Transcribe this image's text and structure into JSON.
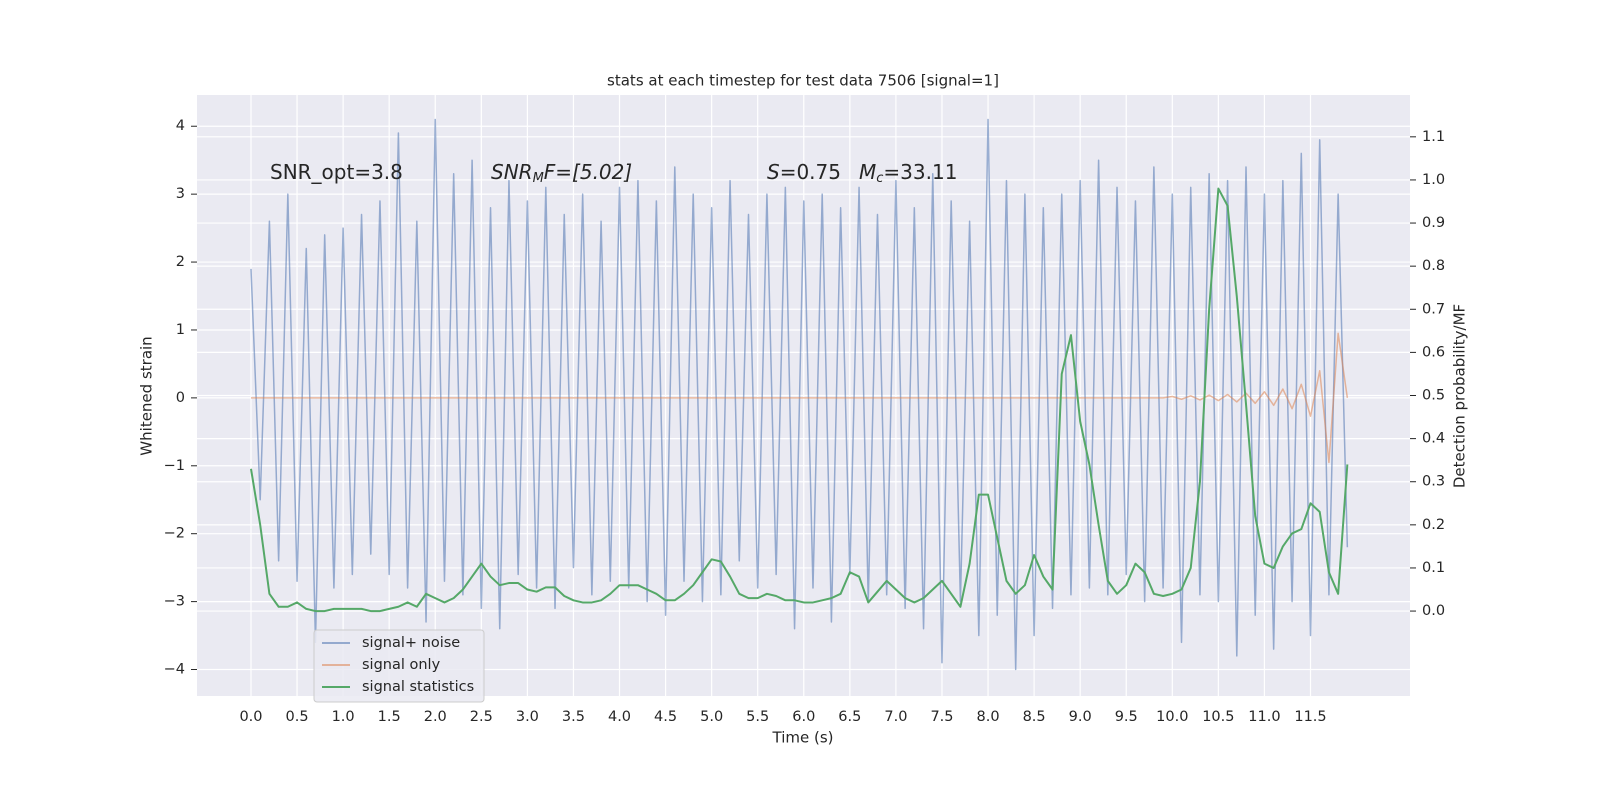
{
  "chart_data": {
    "type": "line",
    "title": "stats at each timestep for test data 7506 [signal=1]",
    "xlabel": "Time (s)",
    "ylabel": "Whitened strain",
    "y2label": "Detection probability/MF",
    "annotations": [
      {
        "parts": [
          "SNR_opt=3.8"
        ]
      },
      {
        "parts": [
          "SNR",
          "M",
          "F=[5.02]"
        ]
      },
      {
        "parts": [
          "S",
          "=0.75",
          "M",
          "c",
          "=33.11"
        ]
      }
    ],
    "x": [
      0,
      0.1,
      0.2,
      0.3,
      0.4,
      0.5,
      0.6,
      0.7,
      0.8,
      0.9,
      1,
      1.1,
      1.2,
      1.3,
      1.4,
      1.5,
      1.6,
      1.7,
      1.8,
      1.9,
      2,
      2.1,
      2.2,
      2.3,
      2.4,
      2.5,
      2.6,
      2.7,
      2.8,
      2.9,
      3,
      3.1,
      3.2,
      3.3,
      3.4,
      3.5,
      3.6,
      3.7,
      3.8,
      3.9,
      4,
      4.1,
      4.2,
      4.3,
      4.4,
      4.5,
      4.6,
      4.7,
      4.8,
      4.9,
      5,
      5.1,
      5.2,
      5.3,
      5.4,
      5.5,
      5.6,
      5.7,
      5.8,
      5.9,
      6,
      6.1,
      6.2,
      6.3,
      6.4,
      6.5,
      6.6,
      6.7,
      6.8,
      6.9,
      7,
      7.1,
      7.2,
      7.3,
      7.4,
      7.5,
      7.6,
      7.7,
      7.8,
      7.9,
      8,
      8.1,
      8.2,
      8.3,
      8.4,
      8.5,
      8.6,
      8.7,
      8.8,
      8.9,
      9,
      9.1,
      9.2,
      9.3,
      9.4,
      9.5,
      9.6,
      9.7,
      9.8,
      9.9,
      10,
      10.1,
      10.2,
      10.3,
      10.4,
      10.5,
      10.6,
      10.7,
      10.8,
      10.9,
      11,
      11.1,
      11.2,
      11.3,
      11.4,
      11.5,
      11.6,
      11.7,
      11.8,
      11.9
    ],
    "series": [
      {
        "name": "signal+ noise",
        "color": "#4c72b0",
        "axis": "y",
        "values": [
          1.9,
          -1.5,
          2.6,
          -2.4,
          3.0,
          -2.7,
          2.2,
          -3.6,
          2.4,
          -2.8,
          2.5,
          -2.6,
          2.7,
          -2.3,
          2.9,
          -2.6,
          3.9,
          -2.8,
          2.6,
          -3.3,
          4.1,
          -2.7,
          3.3,
          -2.9,
          3.5,
          -3.1,
          2.8,
          -3.4,
          3.2,
          -2.6,
          2.9,
          -2.8,
          3.1,
          -3.1,
          2.7,
          -2.5,
          3.0,
          -2.9,
          2.6,
          -2.7,
          3.1,
          -2.8,
          3.2,
          -3.0,
          2.9,
          -3.2,
          3.4,
          -2.7,
          3.0,
          -3.0,
          2.8,
          -2.9,
          3.2,
          -2.4,
          2.7,
          -2.8,
          3.0,
          -2.6,
          3.1,
          -3.4,
          2.9,
          -2.8,
          3.0,
          -3.3,
          2.8,
          -2.6,
          3.1,
          -3.0,
          2.7,
          -2.9,
          3.2,
          -3.1,
          2.8,
          -3.4,
          3.3,
          -3.9,
          2.9,
          -3.0,
          2.6,
          -3.5,
          4.1,
          -3.2,
          3.2,
          -4.0,
          3.0,
          -3.5,
          2.8,
          -3.1,
          3.0,
          -2.9,
          3.2,
          -2.8,
          3.5,
          -2.9,
          3.1,
          -2.6,
          2.9,
          -3.0,
          3.4,
          -2.8,
          3.0,
          -3.6,
          3.1,
          -2.9,
          3.3,
          -3.0,
          3.2,
          -3.8,
          3.4,
          -3.2,
          3.0,
          -3.7,
          3.2,
          -3.0,
          3.6,
          -3.5,
          3.8,
          -2.9,
          3.0,
          -2.2
        ]
      },
      {
        "name": "signal only",
        "color": "#dd8452",
        "axis": "y",
        "values": [
          0,
          0,
          0,
          0,
          0,
          0,
          0,
          0,
          0,
          0,
          0,
          0,
          0,
          0,
          0,
          0,
          0,
          0,
          0,
          0,
          0,
          0,
          0,
          0,
          0,
          0,
          0,
          0,
          0,
          0,
          0,
          0,
          0,
          0,
          0,
          0,
          0,
          0,
          0,
          0,
          0,
          0,
          0,
          0,
          0,
          0,
          0,
          0,
          0,
          0,
          0,
          0,
          0,
          0,
          0,
          0,
          0,
          0,
          0,
          0,
          0,
          0,
          0,
          0,
          0,
          0,
          0,
          0,
          0,
          0,
          0,
          0,
          0,
          0,
          0,
          0,
          0,
          0,
          0,
          0,
          0,
          0,
          0,
          0,
          0,
          0,
          0,
          0,
          0,
          0,
          0,
          0,
          0,
          0,
          0,
          0,
          0,
          0,
          0,
          0,
          0.02,
          -0.02,
          0.03,
          -0.03,
          0.04,
          -0.04,
          0.05,
          -0.06,
          0.07,
          -0.08,
          0.09,
          -0.11,
          0.13,
          -0.16,
          0.2,
          -0.27,
          0.4,
          -0.95,
          0.95,
          0
        ]
      },
      {
        "name": "signal statistics",
        "color": "#55a868",
        "axis": "y2",
        "values": [
          0.33,
          0.2,
          0.04,
          0.01,
          0.01,
          0.02,
          0.005,
          0.0,
          0.0,
          0.005,
          0.005,
          0.005,
          0.005,
          0.0,
          0.0,
          0.005,
          0.01,
          0.02,
          0.01,
          0.04,
          0.03,
          0.02,
          0.03,
          0.05,
          0.08,
          0.11,
          0.08,
          0.06,
          0.065,
          0.065,
          0.05,
          0.045,
          0.055,
          0.055,
          0.035,
          0.025,
          0.02,
          0.02,
          0.025,
          0.04,
          0.06,
          0.06,
          0.06,
          0.05,
          0.04,
          0.025,
          0.025,
          0.04,
          0.06,
          0.09,
          0.12,
          0.115,
          0.08,
          0.04,
          0.03,
          0.03,
          0.04,
          0.035,
          0.025,
          0.025,
          0.02,
          0.02,
          0.025,
          0.03,
          0.04,
          0.09,
          0.08,
          0.02,
          0.045,
          0.07,
          0.05,
          0.03,
          0.02,
          0.03,
          0.05,
          0.07,
          0.04,
          0.01,
          0.11,
          0.27,
          0.27,
          0.17,
          0.07,
          0.04,
          0.06,
          0.13,
          0.08,
          0.05,
          0.55,
          0.64,
          0.44,
          0.34,
          0.2,
          0.07,
          0.04,
          0.06,
          0.11,
          0.09,
          0.04,
          0.035,
          0.04,
          0.05,
          0.1,
          0.3,
          0.7,
          0.98,
          0.94,
          0.73,
          0.48,
          0.22,
          0.11,
          0.1,
          0.15,
          0.18,
          0.19,
          0.25,
          0.23,
          0.09,
          0.04,
          0.34
        ]
      }
    ],
    "xlim": [
      -0.586,
      12.58
    ],
    "xticks": [
      {
        "value": 0,
        "label": "0.0"
      },
      0.5,
      {
        "value": 1,
        "label": "1.0"
      },
      1.5,
      {
        "value": 2,
        "label": "2.0"
      },
      2.5,
      {
        "value": 3,
        "label": "3.0"
      },
      3.5,
      {
        "value": 4,
        "label": "4.0"
      },
      4.5,
      {
        "value": 5,
        "label": "5.0"
      },
      5.5,
      {
        "value": 6,
        "label": "6.0"
      },
      6.5,
      {
        "value": 7,
        "label": "7.0"
      },
      7.5,
      {
        "value": 8,
        "label": "8.0"
      },
      8.5,
      {
        "value": 9,
        "label": "9.0"
      },
      9.5,
      {
        "value": 10,
        "label": "10.0"
      },
      10.5,
      {
        "value": 11,
        "label": "11.0"
      },
      11.5
    ],
    "ylim": [
      -4.39,
      4.46
    ],
    "yticks": [
      {
        "value": -4,
        "label": "−4"
      },
      {
        "value": -3,
        "label": "−3"
      },
      {
        "value": -2,
        "label": "−2"
      },
      {
        "value": -1,
        "label": "−1"
      },
      0,
      1,
      2,
      3,
      4
    ],
    "y2lim": [
      -0.197,
      1.197
    ],
    "y2ticks": [
      {
        "value": 0,
        "label": "0.0"
      },
      0.1,
      0.2,
      0.3,
      0.4,
      0.5,
      0.6,
      0.7,
      0.8,
      0.9,
      {
        "value": 1,
        "label": "1.0"
      },
      1.1
    ],
    "grid": true,
    "legend": "lower left"
  }
}
